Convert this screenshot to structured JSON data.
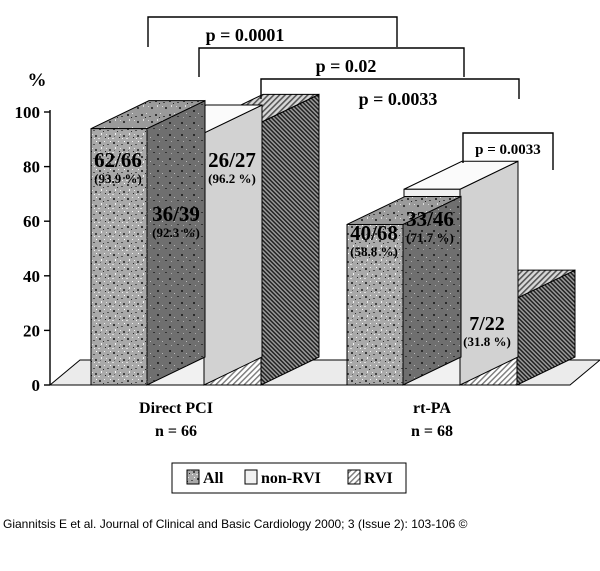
{
  "chart_data": {
    "type": "bar",
    "style": "3d-clustered",
    "ylabel": "%",
    "ylim": [
      0,
      100
    ],
    "yticks": [
      0,
      20,
      40,
      60,
      80,
      100
    ],
    "grid": false,
    "legend_position": "bottom",
    "groups": [
      {
        "label": "Direct PCI",
        "sublabel": "n = 66"
      },
      {
        "label": "rt-PA",
        "sublabel": "n = 68"
      }
    ],
    "series": [
      {
        "name": "All",
        "pattern": "granite",
        "values": [
          93.9,
          58.8
        ],
        "labels": [
          "62/66",
          "40/68"
        ],
        "pcts": [
          "(93.9 %)",
          "(58.8 %)"
        ]
      },
      {
        "name": "non-RVI",
        "pattern": "plain",
        "values": [
          92.3,
          71.7
        ],
        "labels": [
          "36/39",
          "33/46"
        ],
        "pcts": [
          "(92.3 %)",
          "(71.7 %)"
        ]
      },
      {
        "name": "RVI",
        "pattern": "hatch",
        "values": [
          96.2,
          31.8
        ],
        "labels": [
          "26/27",
          "7/22"
        ],
        "pcts": [
          "(96.2 %)",
          "(31.8 %)"
        ]
      }
    ],
    "significance": [
      {
        "text": "p = 0.0001",
        "from": "Direct PCI:All",
        "to": "rt-PA:All"
      },
      {
        "text": "p = 0.02",
        "from": "Direct PCI:non-RVI",
        "to": "rt-PA:non-RVI"
      },
      {
        "text": "p = 0.0033",
        "from": "Direct PCI:RVI",
        "to": "rt-PA:RVI"
      },
      {
        "text": "p = 0.0033",
        "from": "rt-PA:non-RVI",
        "to": "rt-PA:RVI"
      }
    ]
  },
  "caption": "Giannitsis E et al. Journal of Clinical and Basic Cardiology 2000; 3 (Issue 2): 103-106 ©"
}
